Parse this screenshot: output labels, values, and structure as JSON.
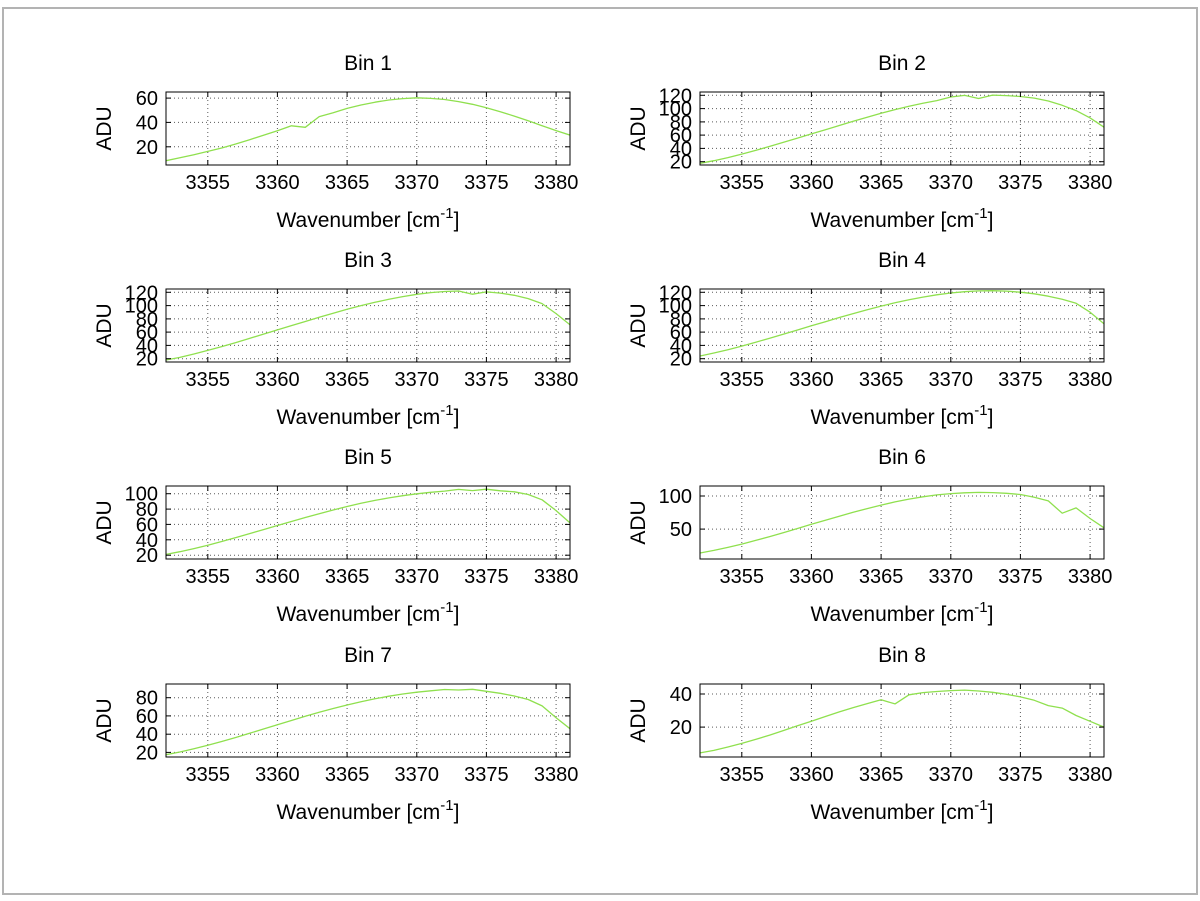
{
  "figure": {
    "background": "#ffffff",
    "border_color": "#b3b3b3",
    "line_color": "#8fe04e",
    "axis_color": "#000000",
    "grid_color": "#5a5a5a"
  },
  "chart_data": [
    {
      "type": "line",
      "title": "Bin 1",
      "xlabel": "Wavenumber [cm^{-1}]",
      "ylabel": "ADU",
      "xlim": [
        3352,
        3381
      ],
      "ylim": [
        5,
        65
      ],
      "xticks": [
        3355,
        3360,
        3365,
        3370,
        3375,
        3380
      ],
      "yticks": [
        20,
        40,
        60
      ],
      "grid": true,
      "x_start": 3352,
      "x_step": 1,
      "y": [
        8.5,
        11.0,
        13.5,
        16.2,
        19.0,
        22.3,
        25.8,
        29.4,
        33.2,
        37.2,
        36.0,
        44.8,
        47.9,
        51.5,
        54.3,
        56.6,
        58.4,
        59.6,
        60.2,
        59.7,
        58.8,
        57.1,
        54.9,
        52.1,
        48.8,
        45.2,
        41.3,
        37.3,
        33.3,
        29.6
      ]
    },
    {
      "type": "line",
      "title": "Bin 2",
      "xlabel": "Wavenumber [cm^{-1}]",
      "ylabel": "ADU",
      "xlim": [
        3352,
        3381
      ],
      "ylim": [
        15,
        125
      ],
      "xticks": [
        3355,
        3360,
        3365,
        3370,
        3375,
        3380
      ],
      "yticks": [
        20,
        40,
        60,
        80,
        100,
        120
      ],
      "grid": true,
      "x_start": 3352,
      "x_step": 1,
      "y": [
        17.5,
        21.5,
        26.2,
        31.5,
        37.0,
        43.0,
        49.2,
        55.5,
        61.8,
        68.0,
        74.5,
        81.0,
        87.0,
        93.0,
        98.5,
        103.5,
        108.0,
        112.0,
        117.5,
        119.9,
        115.2,
        120.4,
        119.6,
        118.2,
        115.8,
        111.5,
        105.0,
        97.0,
        86.0,
        72.0
      ]
    },
    {
      "type": "line",
      "title": "Bin 3",
      "xlabel": "Wavenumber [cm^{-1}]",
      "ylabel": "ADU",
      "xlim": [
        3352,
        3381
      ],
      "ylim": [
        15,
        125
      ],
      "xticks": [
        3355,
        3360,
        3365,
        3370,
        3375,
        3380
      ],
      "yticks": [
        20,
        40,
        60,
        80,
        100,
        120
      ],
      "grid": true,
      "x_start": 3352,
      "x_step": 1,
      "y": [
        18.0,
        22.0,
        27.0,
        32.5,
        38.2,
        44.3,
        50.6,
        57.0,
        63.4,
        69.8,
        76.0,
        82.5,
        88.5,
        94.5,
        100.0,
        105.0,
        109.5,
        113.5,
        117.0,
        119.5,
        121.2,
        122.0,
        117.2,
        120.6,
        118.8,
        115.5,
        110.5,
        103.0,
        88.0,
        71.0
      ]
    },
    {
      "type": "line",
      "title": "Bin 4",
      "xlabel": "Wavenumber [cm^{-1}]",
      "ylabel": "ADU",
      "xlim": [
        3352,
        3381
      ],
      "ylim": [
        15,
        125
      ],
      "xticks": [
        3355,
        3360,
        3365,
        3370,
        3375,
        3380
      ],
      "yticks": [
        20,
        40,
        60,
        80,
        100,
        120
      ],
      "grid": true,
      "x_start": 3352,
      "x_step": 1,
      "y": [
        24.0,
        28.5,
        33.5,
        39.0,
        44.8,
        50.8,
        57.0,
        63.2,
        69.5,
        75.8,
        82.0,
        88.0,
        93.8,
        99.2,
        104.2,
        108.8,
        112.8,
        116.2,
        119.0,
        121.0,
        122.2,
        122.5,
        121.8,
        120.2,
        117.8,
        114.2,
        109.5,
        103.5,
        90.0,
        72.5
      ]
    },
    {
      "type": "line",
      "title": "Bin 5",
      "xlabel": "Wavenumber [cm^{-1}]",
      "ylabel": "ADU",
      "xlim": [
        3352,
        3381
      ],
      "ylim": [
        15,
        110
      ],
      "xticks": [
        3355,
        3360,
        3365,
        3370,
        3375,
        3380
      ],
      "yticks": [
        20,
        40,
        60,
        80,
        100
      ],
      "grid": true,
      "x_start": 3352,
      "x_step": 1,
      "y": [
        21.0,
        24.5,
        28.5,
        33.0,
        37.8,
        42.8,
        48.0,
        53.3,
        58.6,
        63.8,
        69.0,
        74.0,
        78.8,
        83.3,
        87.5,
        91.2,
        94.5,
        97.4,
        99.8,
        101.8,
        103.4,
        105.6,
        104.0,
        105.9,
        103.8,
        102.5,
        99.0,
        92.0,
        78.0,
        62.0
      ]
    },
    {
      "type": "line",
      "title": "Bin 6",
      "xlabel": "Wavenumber [cm^{-1}]",
      "ylabel": "ADU",
      "xlim": [
        3352,
        3381
      ],
      "ylim": [
        5,
        115
      ],
      "xticks": [
        3355,
        3360,
        3365,
        3370,
        3375,
        3380
      ],
      "yticks": [
        50,
        100
      ],
      "grid": true,
      "x_start": 3352,
      "x_step": 1,
      "y": [
        14.0,
        18.0,
        22.5,
        27.5,
        33.0,
        38.8,
        44.8,
        51.0,
        57.3,
        63.5,
        69.5,
        75.5,
        81.0,
        86.2,
        91.0,
        95.2,
        98.8,
        101.6,
        103.6,
        104.8,
        105.4,
        105.0,
        104.0,
        102.2,
        98.0,
        92.5,
        74.0,
        82.0,
        66.0,
        52.0
      ]
    },
    {
      "type": "line",
      "title": "Bin 7",
      "xlabel": "Wavenumber [cm^{-1}]",
      "ylabel": "ADU",
      "xlim": [
        3352,
        3381
      ],
      "ylim": [
        15,
        95
      ],
      "xticks": [
        3355,
        3360,
        3365,
        3370,
        3375,
        3380
      ],
      "yticks": [
        20,
        40,
        60,
        80
      ],
      "grid": true,
      "x_start": 3352,
      "x_step": 1,
      "y": [
        17.5,
        20.5,
        24.0,
        27.8,
        32.0,
        36.4,
        41.0,
        45.7,
        50.4,
        55.0,
        59.6,
        64.0,
        68.2,
        72.0,
        75.6,
        78.8,
        81.6,
        84.0,
        86.0,
        87.5,
        89.0,
        88.4,
        89.2,
        87.0,
        84.8,
        81.8,
        78.0,
        71.0,
        58.0,
        46.0
      ]
    },
    {
      "type": "line",
      "title": "Bin 8",
      "xlabel": "Wavenumber [cm^{-1}]",
      "ylabel": "ADU",
      "xlim": [
        3352,
        3381
      ],
      "ylim": [
        2,
        46
      ],
      "xticks": [
        3355,
        3360,
        3365,
        3370,
        3375,
        3380
      ],
      "yticks": [
        20,
        40
      ],
      "grid": true,
      "x_start": 3352,
      "x_step": 1,
      "y": [
        4.5,
        6.0,
        8.0,
        10.2,
        12.6,
        15.2,
        18.0,
        20.8,
        23.6,
        26.4,
        29.2,
        31.8,
        34.2,
        36.5,
        34.0,
        39.5,
        40.8,
        41.5,
        42.0,
        42.3,
        41.8,
        41.0,
        39.8,
        38.2,
        36.2,
        33.0,
        31.5,
        27.0,
        23.5,
        20.0
      ]
    }
  ]
}
